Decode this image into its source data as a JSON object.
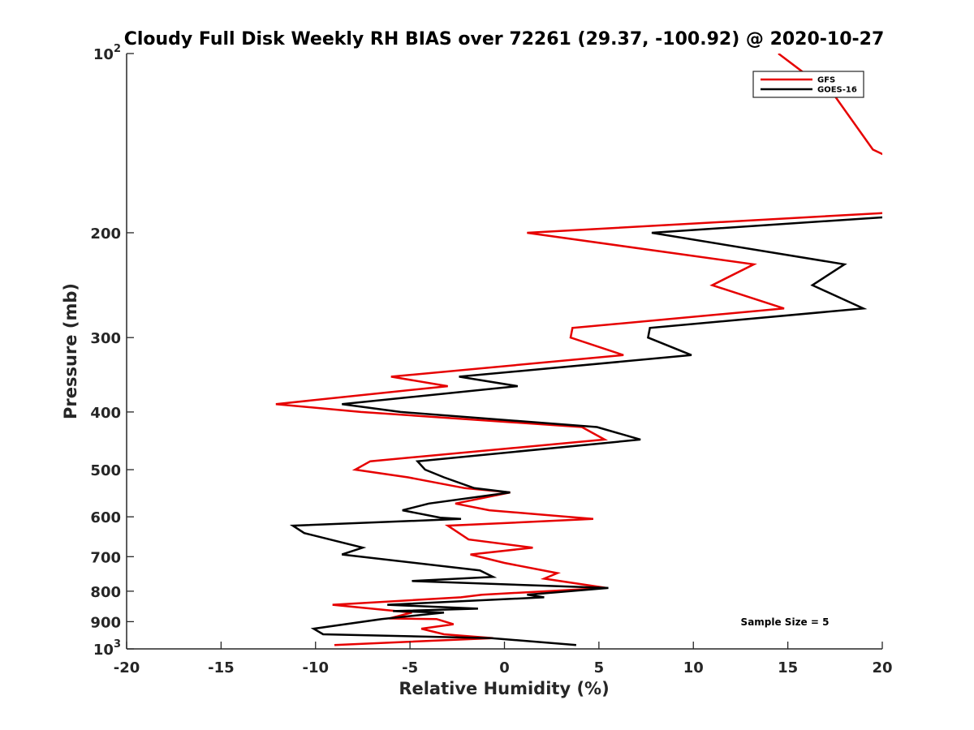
{
  "chart_data": {
    "type": "line",
    "title": "Cloudy Full Disk Weekly RH BIAS over 72261 (29.37, -100.92) @ 2020-10-27",
    "xlabel": "Relative Humidity (%)",
    "ylabel": "Pressure (mb)",
    "xlim": [
      -20,
      20
    ],
    "ylim": [
      100,
      1000
    ],
    "yscale": "log",
    "y_reversed": true,
    "grid": false,
    "legend_position": "top-right",
    "x_ticks": [
      "-20",
      "-15",
      "-10",
      "-5",
      "0",
      "5",
      "10",
      "15",
      "20"
    ],
    "y_ticks": [
      {
        "value": 100,
        "base": "10",
        "exp": "2"
      },
      {
        "value": 200,
        "label": "200"
      },
      {
        "value": 300,
        "label": "300"
      },
      {
        "value": 400,
        "label": "400"
      },
      {
        "value": 500,
        "label": "500"
      },
      {
        "value": 600,
        "label": "600"
      },
      {
        "value": 700,
        "label": "700"
      },
      {
        "value": 800,
        "label": "800"
      },
      {
        "value": 900,
        "label": "900"
      },
      {
        "value": 1000,
        "base": "10",
        "exp": "3"
      }
    ],
    "annotation": "Sample Size = 5",
    "series": [
      {
        "name": "GFS",
        "color": "#e60000",
        "points": [
          [
            14.5,
            100
          ],
          [
            17.5,
            118
          ],
          [
            19.5,
            145
          ],
          [
            20.5,
            150
          ],
          [
            20.5,
            185
          ],
          [
            1.2,
            200
          ],
          [
            13.2,
            226
          ],
          [
            11.0,
            245
          ],
          [
            14.8,
            268
          ],
          [
            3.6,
            289
          ],
          [
            3.5,
            300
          ],
          [
            6.3,
            321
          ],
          [
            -6.0,
            349
          ],
          [
            -3.0,
            362
          ],
          [
            -12.1,
            388
          ],
          [
            -7.6,
            400
          ],
          [
            4.1,
            424
          ],
          [
            5.3,
            445
          ],
          [
            -7.1,
            484
          ],
          [
            -7.9,
            500
          ],
          [
            -5.1,
            515
          ],
          [
            -2.1,
            537
          ],
          [
            0.3,
            546
          ],
          [
            -2.6,
            570
          ],
          [
            -0.8,
            585
          ],
          [
            4.7,
            605
          ],
          [
            -3.0,
            621
          ],
          [
            -1.9,
            655
          ],
          [
            1.5,
            676
          ],
          [
            -1.8,
            694
          ],
          [
            0.0,
            717
          ],
          [
            2.8,
            746
          ],
          [
            2.1,
            762
          ],
          [
            5.4,
            790
          ],
          [
            -1.2,
            811
          ],
          [
            -2.3,
            819
          ],
          [
            -9.1,
            843
          ],
          [
            -4.9,
            869
          ],
          [
            -6.1,
            889
          ],
          [
            -3.6,
            891
          ],
          [
            -2.7,
            909
          ],
          [
            -4.4,
            925
          ],
          [
            -3.2,
            945
          ],
          [
            -0.6,
            959
          ],
          [
            -9.0,
            985
          ]
        ]
      },
      {
        "name": "GOES-16",
        "color": "#000000",
        "points": [
          [
            20.5,
            188
          ],
          [
            7.8,
            200
          ],
          [
            18.0,
            226
          ],
          [
            16.3,
            245
          ],
          [
            19.0,
            268
          ],
          [
            7.7,
            289
          ],
          [
            7.6,
            300
          ],
          [
            9.9,
            321
          ],
          [
            -2.4,
            349
          ],
          [
            0.7,
            362
          ],
          [
            -8.6,
            388
          ],
          [
            -5.5,
            400
          ],
          [
            4.9,
            424
          ],
          [
            7.2,
            445
          ],
          [
            -4.6,
            484
          ],
          [
            -4.2,
            500
          ],
          [
            -3.2,
            515
          ],
          [
            -1.6,
            537
          ],
          [
            0.3,
            546
          ],
          [
            -4.0,
            570
          ],
          [
            -5.4,
            585
          ],
          [
            -3.4,
            602
          ],
          [
            -2.3,
            605
          ],
          [
            -11.2,
            621
          ],
          [
            -10.6,
            639
          ],
          [
            -7.5,
            676
          ],
          [
            -8.6,
            694
          ],
          [
            -1.3,
            738
          ],
          [
            -0.6,
            757
          ],
          [
            -4.9,
            769
          ],
          [
            5.5,
            790
          ],
          [
            1.2,
            811
          ],
          [
            2.1,
            819
          ],
          [
            -6.2,
            843
          ],
          [
            -1.4,
            856
          ],
          [
            -5.9,
            864
          ],
          [
            -3.2,
            869
          ],
          [
            -6.5,
            891
          ],
          [
            -10.1,
            925
          ],
          [
            -9.6,
            945
          ],
          [
            -0.7,
            959
          ],
          [
            3.8,
            985
          ]
        ]
      }
    ]
  }
}
